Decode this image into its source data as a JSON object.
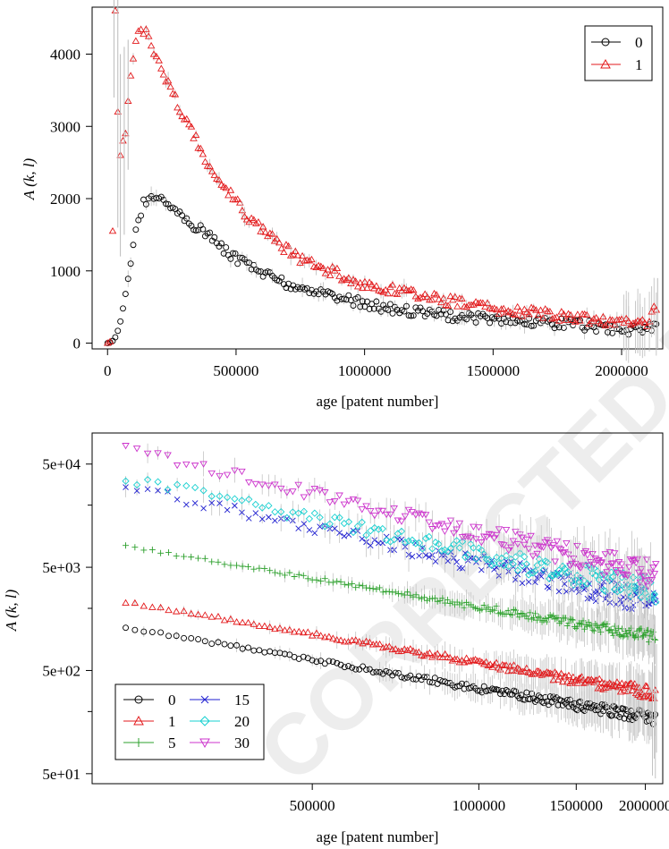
{
  "watermark": "CORRECTED PROOF",
  "chart_data": [
    {
      "type": "scatter",
      "xlabel": "age [patent number]",
      "ylabel": "A (k, l)",
      "xlim": [
        -60000,
        2160000
      ],
      "ylim": [
        -80,
        4650
      ],
      "x_ticks": [
        0,
        500000,
        1000000,
        1500000,
        2000000
      ],
      "x_tick_labels": [
        "0",
        "500000",
        "1000000",
        "1500000",
        "2000000"
      ],
      "y_ticks": [
        0,
        1000,
        2000,
        3000,
        4000
      ],
      "y_tick_labels": [
        "0",
        "1000",
        "2000",
        "3000",
        "4000"
      ],
      "log_y": false,
      "legend_position": "top-right",
      "series": [
        {
          "name": "0",
          "color": "#000000",
          "marker": "circle",
          "x": [
            0,
            10000,
            20000,
            30000,
            40000,
            50000,
            60000,
            70000,
            80000,
            90000,
            100000,
            110000,
            120000,
            130000,
            140000,
            150000,
            160000,
            170000,
            180000,
            200000,
            250000,
            300000,
            400000,
            500000,
            600000,
            700000,
            800000,
            1000000,
            1200000,
            1400000,
            1600000,
            1800000,
            2000000,
            2100000,
            2140000
          ],
          "y": [
            0,
            10,
            30,
            80,
            170,
            300,
            480,
            680,
            890,
            1100,
            1320,
            1520,
            1700,
            1830,
            1930,
            1990,
            2010,
            2000,
            1990,
            1980,
            1880,
            1740,
            1450,
            1160,
            960,
            820,
            720,
            540,
            430,
            360,
            310,
            260,
            200,
            170,
            300
          ]
        },
        {
          "name": "1",
          "color": "#e31a1c",
          "marker": "triangle",
          "x": [
            0,
            10000,
            20000,
            30000,
            40000,
            50000,
            60000,
            70000,
            80000,
            90000,
            100000,
            110000,
            120000,
            130000,
            140000,
            150000,
            160000,
            170000,
            180000,
            200000,
            250000,
            300000,
            400000,
            500000,
            600000,
            700000,
            800000,
            1000000,
            1200000,
            1400000,
            1600000,
            1800000,
            2000000,
            2100000,
            2140000
          ],
          "y": [
            0,
            20,
            1550,
            4600,
            3200,
            2600,
            2800,
            2900,
            3350,
            3700,
            3950,
            4150,
            4250,
            4330,
            4290,
            4270,
            4200,
            4150,
            4050,
            3900,
            3500,
            3100,
            2450,
            1950,
            1550,
            1280,
            1080,
            820,
            660,
            540,
            440,
            360,
            290,
            240,
            540
          ]
        }
      ]
    },
    {
      "type": "scatter",
      "xlabel": "age [patent number]",
      "ylabel": "A (k, l)",
      "xlim": [
        200000,
        2150000
      ],
      "ylim": [
        40,
        100000
      ],
      "log_y": true,
      "x_ticks": [
        500000,
        1000000,
        1500000,
        2000000
      ],
      "x_tick_labels": [
        "500000",
        "1000000",
        "1500000",
        "2000000"
      ],
      "y_ticks": [
        50,
        500,
        5000,
        50000
      ],
      "y_tick_labels": [
        "5e+01",
        "5e+02",
        "5e+03",
        "5e+04"
      ],
      "legend_position": "bottom-left",
      "series": [
        {
          "name": "0",
          "color": "#000000",
          "marker": "circle",
          "start": 1300,
          "end": 170
        },
        {
          "name": "1",
          "color": "#e31a1c",
          "marker": "triangle",
          "start": 2300,
          "end": 300
        },
        {
          "name": "5",
          "color": "#2ca02c",
          "marker": "plus",
          "start": 8000,
          "end": 1050
        },
        {
          "name": "15",
          "color": "#1f1fd0",
          "marker": "x",
          "start": 30000,
          "end": 2300
        },
        {
          "name": "20",
          "color": "#17d0d0",
          "marker": "diamond",
          "start": 37000,
          "end": 2900
        },
        {
          "name": "30",
          "color": "#cc33cc",
          "marker": "down-triangle",
          "start": 70000,
          "end": 4200
        }
      ]
    }
  ]
}
